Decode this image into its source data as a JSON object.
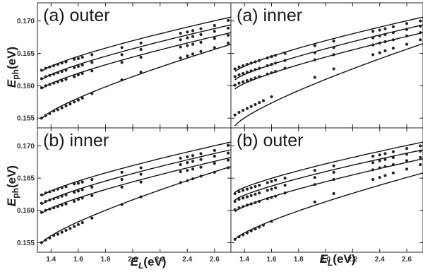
{
  "figure": {
    "ylabel_main": "E",
    "ylabel_sub": "ph",
    "ylabel_unit": "(eV)",
    "xlabel_main": "E",
    "xlabel_sub": "L",
    "xlabel_unit": "(eV)"
  },
  "chart_data": [
    {
      "type": "scatter",
      "title": "(a) outer",
      "xlim": [
        1.3,
        2.72
      ],
      "ylim": [
        0.1535,
        0.1728
      ],
      "xticks": [
        1.4,
        1.6,
        1.8,
        2.0,
        2.2,
        2.4,
        2.6
      ],
      "xtick_labels": [
        "1.4",
        "1.6",
        "1.8",
        "2.0",
        "2.2",
        "2.4",
        "2.6"
      ],
      "yticks": [
        0.155,
        0.16,
        0.165,
        0.17
      ],
      "ytick_labels": [
        "0.155",
        "0.160",
        "0.165",
        "0.170"
      ],
      "curves": [
        {
          "a": 0.1622,
          "b": 0.1706
        },
        {
          "a": 0.1609,
          "b": 0.1694
        },
        {
          "a": 0.1595,
          "b": 0.1682
        },
        {
          "a": 0.1549,
          "b": 0.1664
        }
      ],
      "series": [
        {
          "x": [
            1.33,
            1.36,
            1.39,
            1.42,
            1.45,
            1.48,
            1.51,
            1.57,
            1.6,
            1.63,
            1.7,
            1.92,
            2.06,
            2.35,
            2.4,
            2.44,
            2.5,
            2.6,
            2.7
          ],
          "y": [
            0.1624,
            0.1627,
            0.1629,
            0.1631,
            0.1633,
            0.1635,
            0.1637,
            0.1641,
            0.1642,
            0.1644,
            0.1648,
            0.1659,
            0.1666,
            0.1681,
            0.1683,
            0.1685,
            0.1688,
            0.1693,
            0.1701
          ]
        },
        {
          "x": [
            1.33,
            1.36,
            1.39,
            1.42,
            1.45,
            1.48,
            1.51,
            1.57,
            1.6,
            1.63,
            1.7,
            1.92,
            2.06,
            2.35,
            2.4,
            2.44,
            2.5,
            2.6,
            2.7
          ],
          "y": [
            0.1611,
            0.1614,
            0.1616,
            0.1618,
            0.162,
            0.1622,
            0.1624,
            0.1628,
            0.163,
            0.1632,
            0.1636,
            0.1648,
            0.1656,
            0.1671,
            0.1674,
            0.1676,
            0.1679,
            0.1684,
            0.1689
          ]
        },
        {
          "x": [
            1.33,
            1.36,
            1.39,
            1.42,
            1.45,
            1.48,
            1.51,
            1.57,
            1.6,
            1.63,
            1.7,
            1.92,
            2.06,
            2.35,
            2.4,
            2.44,
            2.5,
            2.6,
            2.7
          ],
          "y": [
            0.1597,
            0.16,
            0.1602,
            0.1604,
            0.1606,
            0.1608,
            0.161,
            0.1614,
            0.1617,
            0.1619,
            0.1623,
            0.1636,
            0.1644,
            0.166,
            0.1662,
            0.1664,
            0.1667,
            0.1673,
            0.1678
          ]
        },
        {
          "x": [
            1.33,
            1.36,
            1.39,
            1.42,
            1.45,
            1.48,
            1.51,
            1.54,
            1.57,
            1.6,
            1.63,
            1.7,
            1.92,
            2.06,
            2.35,
            2.4,
            2.44,
            2.5,
            2.6,
            2.7
          ],
          "y": [
            0.155,
            0.1554,
            0.1557,
            0.1561,
            0.1563,
            0.1566,
            0.1569,
            0.1572,
            0.1575,
            0.1578,
            0.1581,
            0.1588,
            0.1609,
            0.1621,
            0.1643,
            0.1646,
            0.1649,
            0.1653,
            0.1659,
            0.1666
          ]
        }
      ]
    },
    {
      "type": "scatter",
      "title": "(a) inner",
      "xlim": [
        1.3,
        2.72
      ],
      "ylim": [
        0.1535,
        0.1728
      ],
      "xticks": [
        1.4,
        1.6,
        1.8,
        2.0,
        2.2,
        2.4,
        2.6
      ],
      "xtick_labels": [
        "1.4",
        "1.6",
        "1.8",
        "2.0",
        "2.2",
        "2.4",
        "2.6"
      ],
      "yticks": [
        0.155,
        0.16,
        0.165,
        0.17
      ],
      "ytick_labels": [
        "0.155",
        "0.160",
        "0.165",
        "0.170"
      ],
      "curves": [
        {
          "a": 0.1622,
          "b": 0.1706
        },
        {
          "a": 0.1609,
          "b": 0.1694
        },
        {
          "a": 0.1595,
          "b": 0.1682
        },
        {
          "a": 0.1538,
          "b": 0.1665
        }
      ],
      "series": [
        {
          "x": [
            1.33,
            1.36,
            1.39,
            1.42,
            1.45,
            1.48,
            1.51,
            1.57,
            1.6,
            1.63,
            1.7,
            1.92,
            2.06,
            2.35,
            2.4,
            2.44,
            2.5,
            2.6,
            2.7
          ],
          "y": [
            0.1626,
            0.1629,
            0.1631,
            0.1633,
            0.1635,
            0.1637,
            0.1639,
            0.1643,
            0.1645,
            0.1647,
            0.165,
            0.1662,
            0.1669,
            0.1684,
            0.1686,
            0.1688,
            0.1691,
            0.1696,
            0.17
          ]
        },
        {
          "x": [
            1.33,
            1.36,
            1.39,
            1.42,
            1.45,
            1.48,
            1.51,
            1.57,
            1.6,
            1.63,
            1.7,
            1.92,
            2.06,
            2.35,
            2.4,
            2.44,
            2.5,
            2.6,
            2.7
          ],
          "y": [
            0.1614,
            0.1617,
            0.1619,
            0.1621,
            0.1623,
            0.1625,
            0.1627,
            0.1631,
            0.1633,
            0.1635,
            0.1639,
            0.1651,
            0.1659,
            0.1674,
            0.1677,
            0.1679,
            0.1682,
            0.1687,
            0.1692
          ]
        },
        {
          "x": [
            1.33,
            1.36,
            1.39,
            1.42,
            1.45,
            1.48,
            1.51,
            1.57,
            1.6,
            1.63,
            1.7,
            1.92,
            2.06,
            2.35,
            2.4,
            2.44,
            2.5,
            2.6,
            2.7
          ],
          "y": [
            0.1601,
            0.1604,
            0.1606,
            0.1608,
            0.161,
            0.1612,
            0.1614,
            0.1618,
            0.162,
            0.1622,
            0.1627,
            0.164,
            0.1648,
            0.1663,
            0.1666,
            0.1668,
            0.1671,
            0.1677,
            0.1682
          ]
        },
        {
          "x": [
            1.33,
            1.36,
            1.39,
            1.42,
            1.45,
            1.48,
            1.51,
            1.54,
            1.6,
            1.92,
            2.06,
            2.35,
            2.4,
            2.44,
            2.5,
            2.6,
            2.7
          ],
          "y": [
            0.1555,
            0.1559,
            0.1562,
            0.1565,
            0.1568,
            0.1571,
            0.1574,
            0.1577,
            0.1583,
            0.1613,
            0.1626,
            0.1648,
            0.1651,
            0.1654,
            0.1658,
            0.1664,
            0.1671
          ]
        }
      ]
    },
    {
      "type": "scatter",
      "title": "(b) inner",
      "xlim": [
        1.3,
        2.72
      ],
      "ylim": [
        0.1535,
        0.1728
      ],
      "xticks": [
        1.4,
        1.6,
        1.8,
        2.0,
        2.2,
        2.4,
        2.6
      ],
      "xtick_labels": [
        "1.4",
        "1.6",
        "1.8",
        "2.0",
        "2.2",
        "2.4",
        "2.6"
      ],
      "yticks": [
        0.155,
        0.16,
        0.165,
        0.17
      ],
      "ytick_labels": [
        "0.155",
        "0.160",
        "0.165",
        "0.170"
      ],
      "curves": [
        {
          "a": 0.1622,
          "b": 0.1706
        },
        {
          "a": 0.1609,
          "b": 0.1694
        },
        {
          "a": 0.1595,
          "b": 0.1682
        },
        {
          "a": 0.1549,
          "b": 0.1668
        }
      ],
      "series": [
        {
          "x": [
            1.33,
            1.36,
            1.39,
            1.42,
            1.45,
            1.48,
            1.51,
            1.57,
            1.6,
            1.63,
            1.7,
            1.92,
            2.06,
            2.35,
            2.4,
            2.44,
            2.5,
            2.6,
            2.7
          ],
          "y": [
            0.1624,
            0.1627,
            0.1629,
            0.1631,
            0.1633,
            0.1635,
            0.1637,
            0.1641,
            0.1642,
            0.1644,
            0.1648,
            0.1659,
            0.1666,
            0.1681,
            0.1683,
            0.1685,
            0.1688,
            0.1693,
            0.1701
          ]
        },
        {
          "x": [
            1.33,
            1.36,
            1.39,
            1.42,
            1.45,
            1.48,
            1.51,
            1.57,
            1.6,
            1.63,
            1.7,
            1.92,
            2.06,
            2.35,
            2.4,
            2.44,
            2.5,
            2.6,
            2.7
          ],
          "y": [
            0.1611,
            0.1614,
            0.1616,
            0.1618,
            0.162,
            0.1622,
            0.1624,
            0.1628,
            0.163,
            0.1632,
            0.1636,
            0.1648,
            0.1656,
            0.1671,
            0.1674,
            0.1676,
            0.1679,
            0.1684,
            0.1689
          ]
        },
        {
          "x": [
            1.33,
            1.36,
            1.39,
            1.42,
            1.45,
            1.48,
            1.51,
            1.57,
            1.6,
            1.63,
            1.7,
            1.92,
            2.06,
            2.35,
            2.4,
            2.44,
            2.5,
            2.6,
            2.7
          ],
          "y": [
            0.1597,
            0.16,
            0.1602,
            0.1604,
            0.1606,
            0.1608,
            0.161,
            0.1614,
            0.1617,
            0.1619,
            0.1623,
            0.1636,
            0.1644,
            0.166,
            0.1662,
            0.1664,
            0.1667,
            0.1673,
            0.1678
          ]
        },
        {
          "x": [
            1.33,
            1.36,
            1.39,
            1.42,
            1.45,
            1.48,
            1.51,
            1.54,
            1.57,
            1.6,
            1.63,
            1.7,
            1.92,
            2.06,
            2.35,
            2.4,
            2.44,
            2.5,
            2.6,
            2.7
          ],
          "y": [
            0.155,
            0.1554,
            0.1557,
            0.1561,
            0.1563,
            0.1566,
            0.1569,
            0.1572,
            0.1575,
            0.1578,
            0.1581,
            0.1588,
            0.1609,
            0.1621,
            0.1643,
            0.1646,
            0.1649,
            0.1653,
            0.1659,
            0.1666
          ]
        }
      ]
    },
    {
      "type": "scatter",
      "title": "(b) outer",
      "xlim": [
        1.3,
        2.72
      ],
      "ylim": [
        0.1535,
        0.1728
      ],
      "xticks": [
        1.4,
        1.6,
        1.8,
        2.0,
        2.2,
        2.4,
        2.6
      ],
      "xtick_labels": [
        "1.4",
        "1.6",
        "1.8",
        "2.0",
        "2.2",
        "2.4",
        "2.6"
      ],
      "yticks": [
        0.155,
        0.16,
        0.165,
        0.17
      ],
      "ytick_labels": [
        "0.155",
        "0.160",
        "0.165",
        "0.170"
      ],
      "curves": [
        {
          "a": 0.1628,
          "b": 0.1706
        },
        {
          "a": 0.1616,
          "b": 0.1694
        },
        {
          "a": 0.1598,
          "b": 0.168
        },
        {
          "a": 0.1555,
          "b": 0.1658
        }
      ],
      "series": [
        {
          "x": [
            1.33,
            1.36,
            1.39,
            1.42,
            1.45,
            1.48,
            1.51,
            1.57,
            1.6,
            1.63,
            1.7,
            1.92,
            2.06,
            2.35,
            2.4,
            2.44,
            2.5,
            2.6,
            2.7
          ],
          "y": [
            0.1626,
            0.1629,
            0.1631,
            0.1633,
            0.1635,
            0.1637,
            0.1639,
            0.1643,
            0.1645,
            0.1647,
            0.165,
            0.1662,
            0.1669,
            0.1684,
            0.1686,
            0.1688,
            0.1691,
            0.1696,
            0.17
          ]
        },
        {
          "x": [
            1.33,
            1.36,
            1.39,
            1.42,
            1.45,
            1.48,
            1.51,
            1.57,
            1.6,
            1.63,
            1.7,
            1.92,
            2.06,
            2.35,
            2.4,
            2.44,
            2.5,
            2.6,
            2.7
          ],
          "y": [
            0.1614,
            0.1617,
            0.1619,
            0.1621,
            0.1623,
            0.1625,
            0.1627,
            0.1631,
            0.1633,
            0.1635,
            0.1639,
            0.1651,
            0.1659,
            0.1674,
            0.1677,
            0.1679,
            0.1682,
            0.1687,
            0.1692
          ]
        },
        {
          "x": [
            1.33,
            1.36,
            1.39,
            1.42,
            1.45,
            1.48,
            1.51,
            1.57,
            1.6,
            1.63,
            1.7,
            1.92,
            2.06,
            2.35,
            2.4,
            2.44,
            2.5,
            2.6,
            2.7
          ],
          "y": [
            0.1601,
            0.1604,
            0.1606,
            0.1608,
            0.161,
            0.1612,
            0.1614,
            0.1618,
            0.162,
            0.1622,
            0.1627,
            0.164,
            0.1648,
            0.1663,
            0.1666,
            0.1668,
            0.1671,
            0.1677,
            0.1682
          ]
        },
        {
          "x": [
            1.33,
            1.36,
            1.39,
            1.42,
            1.45,
            1.48,
            1.51,
            1.54,
            1.6,
            1.92,
            2.06,
            2.35,
            2.4,
            2.44,
            2.5,
            2.6,
            2.7
          ],
          "y": [
            0.1555,
            0.1559,
            0.1562,
            0.1565,
            0.1568,
            0.1571,
            0.1574,
            0.1577,
            0.1583,
            0.1613,
            0.1626,
            0.1648,
            0.1651,
            0.1654,
            0.1658,
            0.1664,
            0.1671
          ]
        }
      ]
    }
  ]
}
